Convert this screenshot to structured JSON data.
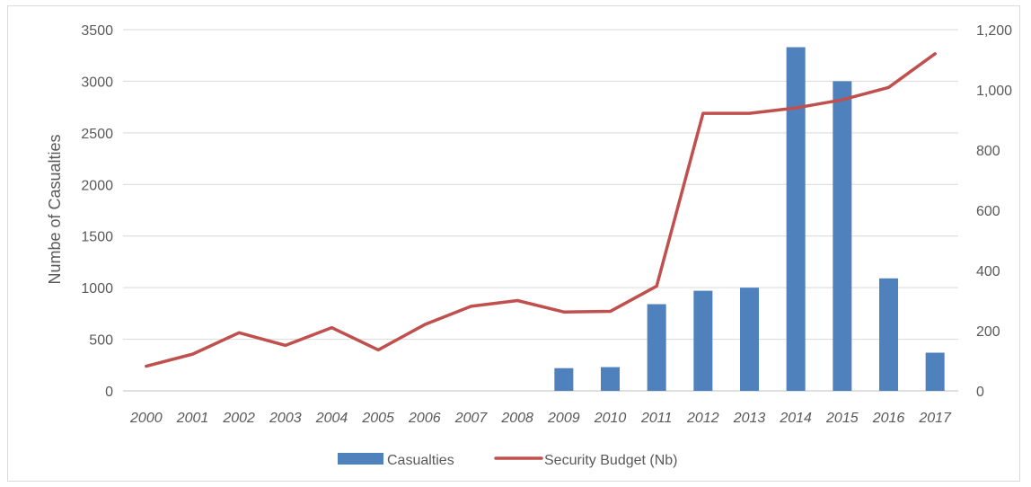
{
  "chart_data": {
    "type": "bar",
    "categories": [
      "2000",
      "2001",
      "2002",
      "2003",
      "2004",
      "2005",
      "2006",
      "2007",
      "2008",
      "2009",
      "2010",
      "2011",
      "2012",
      "2013",
      "2014",
      "2015",
      "2016",
      "2017"
    ],
    "series": [
      {
        "name": "Casualties",
        "type": "bar",
        "axis": "left",
        "color": "#4f81bd",
        "values": [
          0,
          0,
          0,
          0,
          0,
          0,
          0,
          0,
          0,
          220,
          230,
          840,
          970,
          1000,
          3330,
          3000,
          1090,
          370
        ]
      },
      {
        "name": "Security Budget (Nb)",
        "type": "line",
        "axis": "right",
        "color": "#c0504d",
        "values": [
          82,
          122,
          193,
          151,
          210,
          136,
          220,
          281,
          300,
          262,
          264,
          348,
          922,
          922,
          940,
          967,
          1008,
          1120
        ]
      }
    ],
    "title": "",
    "xlabel": "",
    "ylabel": "Numbe of Casualties",
    "y2label": "",
    "ylim": [
      0,
      3500
    ],
    "y2lim": [
      0,
      1200
    ],
    "yticks": [
      "0",
      "500",
      "1000",
      "1500",
      "2000",
      "2500",
      "3000",
      "3500"
    ],
    "y2ticks": [
      "0",
      "200",
      "400",
      "600",
      "800",
      "1,000",
      "1,200"
    ],
    "grid": true,
    "legend_position": "bottom"
  }
}
